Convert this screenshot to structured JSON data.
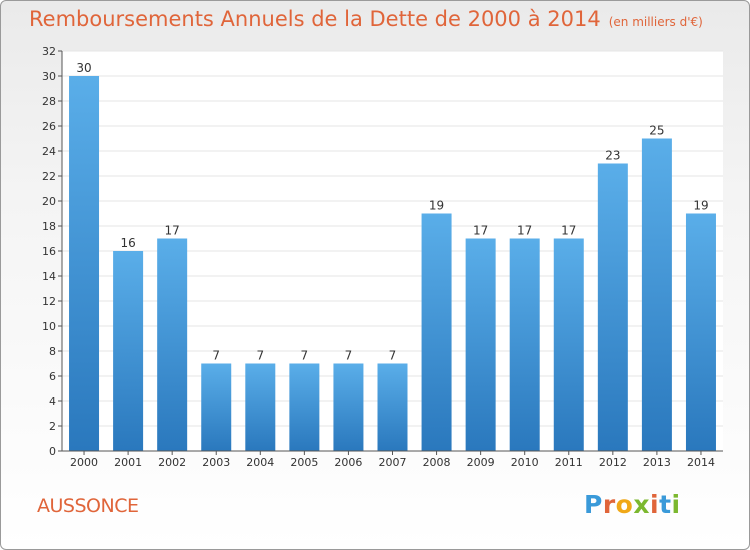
{
  "title": "Remboursements Annuels de la Dette de 2000 à 2014",
  "unit": "(en milliers d'€)",
  "commune": "AUSSONCE",
  "logo": {
    "text": "Proxiti",
    "colors": [
      "#3a9ad9",
      "#e0653a",
      "#f0a818",
      "#7cb82f",
      "#e0653a",
      "#3a9ad9",
      "#7cb82f"
    ]
  },
  "colors": {
    "bar_light": "#5aaee9",
    "bar_dark": "#2a78bd",
    "title": "#e0653a",
    "grid": "#e6e6e6",
    "axis": "#555555"
  },
  "chart_data": {
    "type": "bar",
    "title": "Remboursements Annuels de la Dette de 2000 à 2014",
    "xlabel": "",
    "ylabel": "",
    "categories": [
      "2000",
      "2001",
      "2002",
      "2003",
      "2004",
      "2005",
      "2006",
      "2007",
      "2008",
      "2009",
      "2010",
      "2011",
      "2012",
      "2013",
      "2014"
    ],
    "values": [
      30,
      16,
      17,
      7,
      7,
      7,
      7,
      7,
      19,
      17,
      17,
      17,
      23,
      25,
      19
    ],
    "ylim": [
      0,
      32
    ],
    "yticks": [
      0,
      2,
      4,
      6,
      8,
      10,
      12,
      14,
      16,
      18,
      20,
      22,
      24,
      26,
      28,
      30,
      32
    ],
    "grid": true
  }
}
